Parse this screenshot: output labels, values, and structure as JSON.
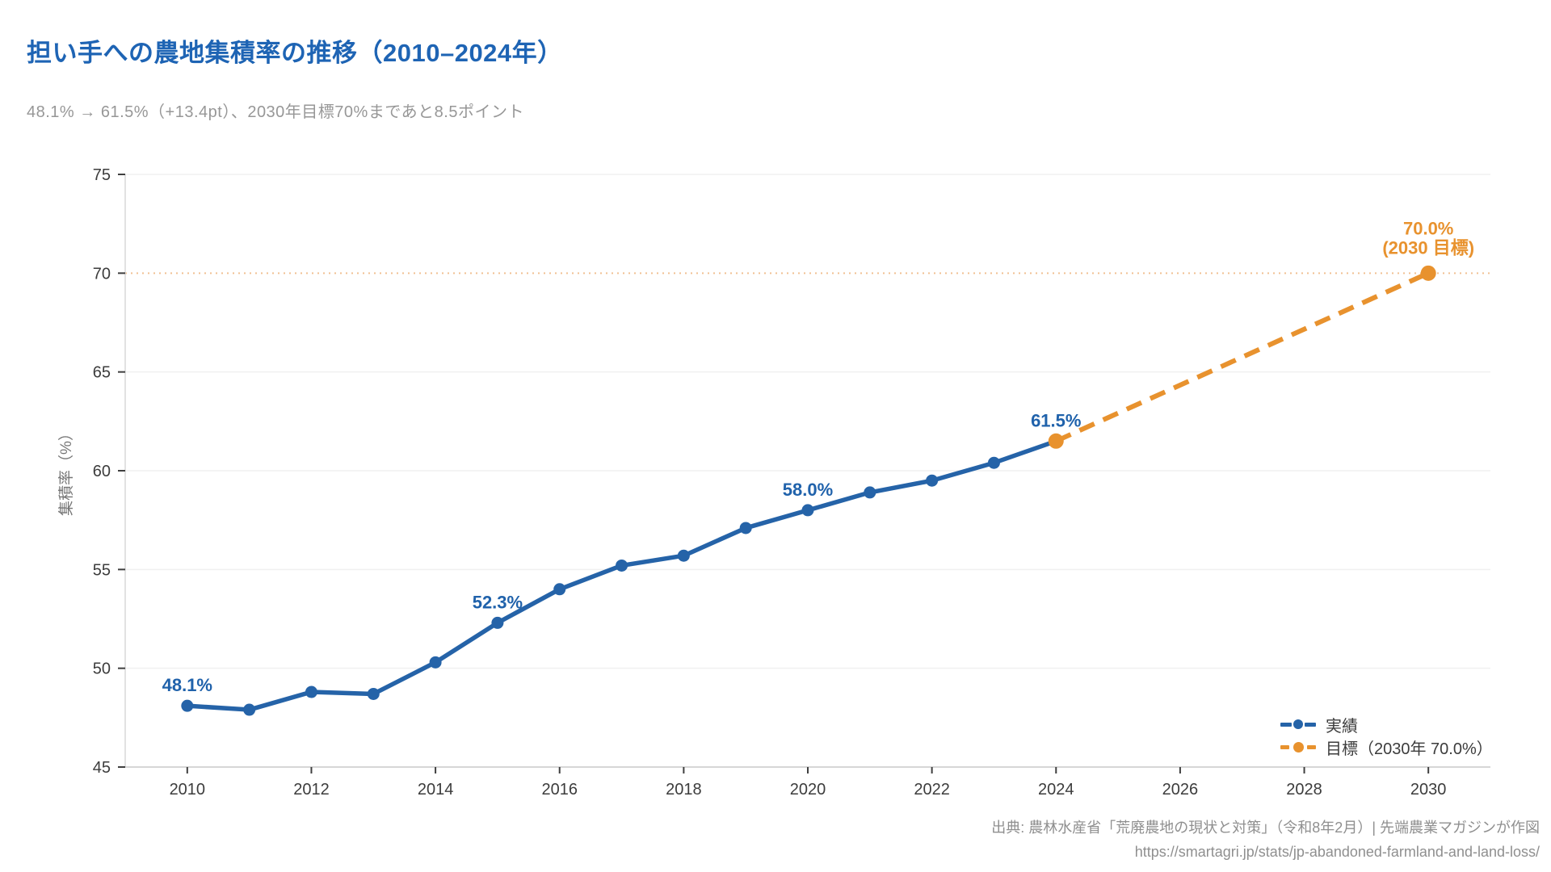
{
  "header": {
    "title": "担い手への農地集積率の推移（2010–2024年）",
    "subtitle": "48.1% → 61.5%（+13.4pt）、2030年目標70%まであと8.5ポイント"
  },
  "chart_data": {
    "type": "line",
    "xlabel": "",
    "ylabel": "集積率（%）",
    "xlim": [
      2009,
      2031
    ],
    "ylim": [
      45,
      75
    ],
    "yticks": [
      45,
      50,
      55,
      60,
      65,
      70,
      75
    ],
    "xticks": [
      2010,
      2012,
      2014,
      2016,
      2018,
      2020,
      2022,
      2024,
      2026,
      2028,
      2030
    ],
    "grid": true,
    "legend_position": "bottom-right",
    "series": [
      {
        "name": "実績",
        "color": "#2563a8",
        "style": "solid",
        "markers": "all-but-last",
        "x": [
          2010,
          2011,
          2012,
          2013,
          2014,
          2015,
          2016,
          2017,
          2018,
          2019,
          2020,
          2021,
          2022,
          2023,
          2024
        ],
        "values": [
          48.1,
          47.9,
          48.8,
          48.7,
          50.3,
          52.3,
          54.0,
          55.2,
          55.7,
          57.1,
          58.0,
          58.9,
          59.5,
          60.4,
          61.5
        ]
      },
      {
        "name": "目標（2030年 70.0%）",
        "color": "#e8922e",
        "style": "dashed",
        "markers": "all",
        "x": [
          2024,
          2030
        ],
        "values": [
          61.5,
          70.0
        ]
      }
    ],
    "reference_line": {
      "y": 70,
      "color": "#f1c193",
      "style": "dotted"
    },
    "annotations": [
      {
        "x": 2010,
        "y": 48.1,
        "text": "48.1%",
        "color": "#2062ab"
      },
      {
        "x": 2015,
        "y": 52.3,
        "text": "52.3%",
        "color": "#2062ab"
      },
      {
        "x": 2020,
        "y": 58.0,
        "text": "58.0%",
        "color": "#2062ab"
      },
      {
        "x": 2024,
        "y": 61.5,
        "text": "61.5%",
        "color": "#2062ab"
      },
      {
        "x": 2030,
        "y": 70.0,
        "text": "70.0%",
        "text2": "(2030 目標)",
        "color": "#e8922e"
      }
    ]
  },
  "footer": {
    "source": "出典: 農林水産省「荒廃農地の現状と対策」（令和8年2月）| 先端農業マガジンが作図",
    "url": "https://smartagri.jp/stats/jp-abandoned-farmland-and-land-loss/"
  }
}
